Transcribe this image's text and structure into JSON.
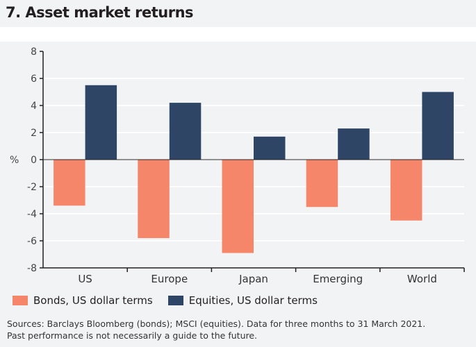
{
  "title": "7. Asset market returns",
  "chart_data": {
    "type": "bar",
    "categories": [
      "US",
      "Europe",
      "Japan",
      "Emerging",
      "World"
    ],
    "series": [
      {
        "name": "Bonds, US dollar terms",
        "values": [
          -3.4,
          -5.8,
          -6.9,
          -3.5,
          -4.5
        ],
        "color": "#f6866a"
      },
      {
        "name": "Equities, US dollar terms",
        "values": [
          5.5,
          4.2,
          1.7,
          2.3,
          5.0
        ],
        "color": "#2e4566"
      }
    ],
    "ylabel": "%",
    "ylim": [
      -8,
      8
    ],
    "yticks": [
      8,
      6,
      4,
      2,
      0,
      -2,
      -4,
      -6,
      -8
    ],
    "grid": true,
    "legend": "bottom"
  },
  "sources": "Sources: Barclays Bloomberg (bonds); MSCI (equities). Data for three months to 31 March 2021.",
  "note": "Past performance is not necessarily a guide to the future."
}
